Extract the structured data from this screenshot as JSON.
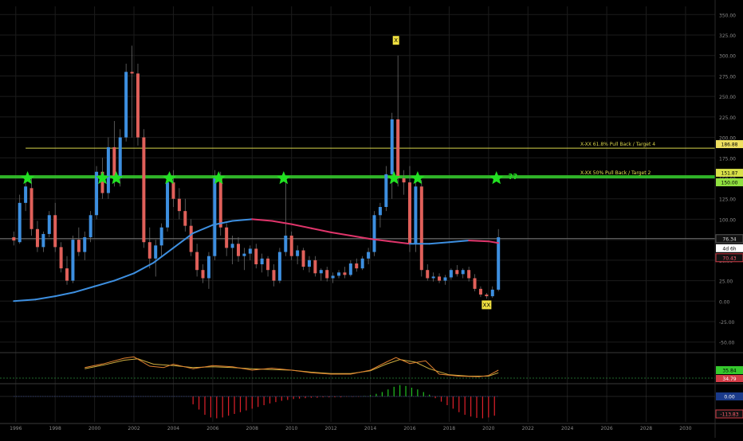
{
  "colors": {
    "background": "#000000",
    "grid": "#1c1c1c",
    "bull_candle": "#3d8fe0",
    "bear_candle": "#e0605a",
    "ma_rising": "#3d8fe0",
    "ma_falling": "#e0356b",
    "star": "#22e022",
    "level_618": "#d8d44a",
    "level_50": "#35c82d",
    "ref_line": "#777777",
    "axis_text": "#8a8a8a",
    "xx_label_bg": "#f0e040",
    "price_tag_bg": "#ffffff",
    "red_tag_bg": "#d13b46",
    "osc_fast": "#e08030",
    "osc_slow": "#d0b040",
    "osc_dash": "#2a8a3a",
    "hist_neg": "#e0202a",
    "hist_pos": "#20c020"
  },
  "chart_data": {
    "type": "candlestick",
    "x_axis_years": [
      "1996",
      "1998",
      "2000",
      "2002",
      "2004",
      "2006",
      "2008",
      "2010",
      "2012",
      "2014",
      "2016",
      "2018",
      "2020",
      "2022",
      "2024",
      "2026",
      "2028",
      "2030"
    ],
    "y_ticks": [
      "350.00",
      "325.00",
      "300.00",
      "275.00",
      "250.00",
      "225.00",
      "200.00",
      "175.00",
      "150.00",
      "125.00",
      "100.00",
      "75.00",
      "50.00",
      "25.00",
      "0.00",
      "-25.00",
      "-50.00"
    ],
    "ylim": [
      -60,
      360
    ],
    "xlim": [
      1995.2,
      2031.5
    ],
    "price_levels": [
      {
        "name": "618",
        "value": 186.88,
        "label": "X-XX 61.8% Pull Back / Target 4",
        "tag": "186.88",
        "start": 1996.5
      },
      {
        "name": "50",
        "value": 151.87,
        "label": "X-XX 50% Pull Back / Target 2",
        "tag": "151.87",
        "start": 1995.2
      },
      {
        "name": "50b",
        "value": 150.0,
        "tag": "150.00"
      }
    ],
    "current_price": {
      "value": 76.34,
      "tag": "76.34",
      "countdown": "4d 6h"
    },
    "red_tag": {
      "value": 70.43,
      "tag": "70.43"
    },
    "candles": [
      {
        "t": 1995.9,
        "o": 78,
        "h": 85,
        "l": 68,
        "c": 74
      },
      {
        "t": 1996.2,
        "o": 72,
        "h": 130,
        "l": 70,
        "c": 120
      },
      {
        "t": 1996.5,
        "o": 120,
        "h": 148,
        "l": 110,
        "c": 140
      },
      {
        "t": 1996.8,
        "o": 138,
        "h": 150,
        "l": 80,
        "c": 88
      },
      {
        "t": 1997.1,
        "o": 88,
        "h": 98,
        "l": 60,
        "c": 66
      },
      {
        "t": 1997.4,
        "o": 66,
        "h": 85,
        "l": 60,
        "c": 82
      },
      {
        "t": 1997.7,
        "o": 82,
        "h": 110,
        "l": 78,
        "c": 105
      },
      {
        "t": 1998.0,
        "o": 105,
        "h": 120,
        "l": 60,
        "c": 66
      },
      {
        "t": 1998.3,
        "o": 66,
        "h": 72,
        "l": 35,
        "c": 40
      },
      {
        "t": 1998.6,
        "o": 40,
        "h": 55,
        "l": 20,
        "c": 25
      },
      {
        "t": 1998.9,
        "o": 25,
        "h": 80,
        "l": 22,
        "c": 75
      },
      {
        "t": 1999.2,
        "o": 75,
        "h": 90,
        "l": 55,
        "c": 60
      },
      {
        "t": 1999.5,
        "o": 60,
        "h": 85,
        "l": 50,
        "c": 78
      },
      {
        "t": 1999.8,
        "o": 78,
        "h": 110,
        "l": 72,
        "c": 105
      },
      {
        "t": 2000.1,
        "o": 105,
        "h": 165,
        "l": 100,
        "c": 158
      },
      {
        "t": 2000.4,
        "o": 158,
        "h": 175,
        "l": 125,
        "c": 132
      },
      {
        "t": 2000.7,
        "o": 132,
        "h": 200,
        "l": 125,
        "c": 188
      },
      {
        "t": 2001.0,
        "o": 188,
        "h": 220,
        "l": 140,
        "c": 150
      },
      {
        "t": 2001.3,
        "o": 150,
        "h": 210,
        "l": 140,
        "c": 200
      },
      {
        "t": 2001.6,
        "o": 200,
        "h": 290,
        "l": 195,
        "c": 280
      },
      {
        "t": 2001.9,
        "o": 280,
        "h": 312,
        "l": 200,
        "c": 278
      },
      {
        "t": 2002.2,
        "o": 278,
        "h": 290,
        "l": 190,
        "c": 200
      },
      {
        "t": 2002.5,
        "o": 200,
        "h": 210,
        "l": 65,
        "c": 72
      },
      {
        "t": 2002.8,
        "o": 72,
        "h": 90,
        "l": 40,
        "c": 52
      },
      {
        "t": 2003.1,
        "o": 52,
        "h": 75,
        "l": 30,
        "c": 68
      },
      {
        "t": 2003.4,
        "o": 68,
        "h": 95,
        "l": 55,
        "c": 90
      },
      {
        "t": 2003.7,
        "o": 90,
        "h": 155,
        "l": 85,
        "c": 145
      },
      {
        "t": 2004.0,
        "o": 145,
        "h": 160,
        "l": 115,
        "c": 125
      },
      {
        "t": 2004.3,
        "o": 125,
        "h": 138,
        "l": 100,
        "c": 110
      },
      {
        "t": 2004.6,
        "o": 110,
        "h": 125,
        "l": 85,
        "c": 92
      },
      {
        "t": 2004.9,
        "o": 92,
        "h": 100,
        "l": 55,
        "c": 60
      },
      {
        "t": 2005.2,
        "o": 60,
        "h": 70,
        "l": 30,
        "c": 38
      },
      {
        "t": 2005.5,
        "o": 38,
        "h": 45,
        "l": 22,
        "c": 28
      },
      {
        "t": 2005.8,
        "o": 28,
        "h": 60,
        "l": 15,
        "c": 55
      },
      {
        "t": 2006.1,
        "o": 55,
        "h": 160,
        "l": 50,
        "c": 150
      },
      {
        "t": 2006.4,
        "o": 150,
        "h": 158,
        "l": 80,
        "c": 90
      },
      {
        "t": 2006.7,
        "o": 90,
        "h": 95,
        "l": 55,
        "c": 65
      },
      {
        "t": 2007.0,
        "o": 65,
        "h": 80,
        "l": 45,
        "c": 70
      },
      {
        "t": 2007.3,
        "o": 70,
        "h": 78,
        "l": 48,
        "c": 55
      },
      {
        "t": 2007.6,
        "o": 55,
        "h": 65,
        "l": 38,
        "c": 58
      },
      {
        "t": 2007.9,
        "o": 58,
        "h": 68,
        "l": 50,
        "c": 64
      },
      {
        "t": 2008.2,
        "o": 64,
        "h": 70,
        "l": 40,
        "c": 45
      },
      {
        "t": 2008.5,
        "o": 45,
        "h": 58,
        "l": 35,
        "c": 52
      },
      {
        "t": 2008.8,
        "o": 52,
        "h": 55,
        "l": 30,
        "c": 38
      },
      {
        "t": 2009.1,
        "o": 38,
        "h": 45,
        "l": 18,
        "c": 25
      },
      {
        "t": 2009.4,
        "o": 25,
        "h": 65,
        "l": 22,
        "c": 60
      },
      {
        "t": 2009.7,
        "o": 60,
        "h": 150,
        "l": 55,
        "c": 80
      },
      {
        "t": 2010.0,
        "o": 80,
        "h": 85,
        "l": 50,
        "c": 55
      },
      {
        "t": 2010.3,
        "o": 55,
        "h": 68,
        "l": 45,
        "c": 62
      },
      {
        "t": 2010.6,
        "o": 62,
        "h": 65,
        "l": 38,
        "c": 42
      },
      {
        "t": 2010.9,
        "o": 42,
        "h": 55,
        "l": 35,
        "c": 50
      },
      {
        "t": 2011.2,
        "o": 50,
        "h": 55,
        "l": 30,
        "c": 34
      },
      {
        "t": 2011.5,
        "o": 34,
        "h": 40,
        "l": 25,
        "c": 38
      },
      {
        "t": 2011.8,
        "o": 38,
        "h": 42,
        "l": 24,
        "c": 28
      },
      {
        "t": 2012.1,
        "o": 28,
        "h": 35,
        "l": 22,
        "c": 31
      },
      {
        "t": 2012.4,
        "o": 31,
        "h": 38,
        "l": 28,
        "c": 35
      },
      {
        "t": 2012.7,
        "o": 35,
        "h": 42,
        "l": 28,
        "c": 32
      },
      {
        "t": 2013.0,
        "o": 32,
        "h": 50,
        "l": 30,
        "c": 46
      },
      {
        "t": 2013.3,
        "o": 46,
        "h": 52,
        "l": 36,
        "c": 40
      },
      {
        "t": 2013.6,
        "o": 40,
        "h": 55,
        "l": 38,
        "c": 52
      },
      {
        "t": 2013.9,
        "o": 52,
        "h": 65,
        "l": 45,
        "c": 60
      },
      {
        "t": 2014.2,
        "o": 60,
        "h": 110,
        "l": 55,
        "c": 105
      },
      {
        "t": 2014.5,
        "o": 105,
        "h": 120,
        "l": 90,
        "c": 115
      },
      {
        "t": 2014.8,
        "o": 115,
        "h": 165,
        "l": 110,
        "c": 155
      },
      {
        "t": 2015.1,
        "o": 155,
        "h": 230,
        "l": 125,
        "c": 222
      },
      {
        "t": 2015.4,
        "o": 222,
        "h": 300,
        "l": 140,
        "c": 150
      },
      {
        "t": 2015.7,
        "o": 150,
        "h": 160,
        "l": 130,
        "c": 145
      },
      {
        "t": 2016.0,
        "o": 145,
        "h": 165,
        "l": 60,
        "c": 70
      },
      {
        "t": 2016.3,
        "o": 70,
        "h": 150,
        "l": 60,
        "c": 140
      },
      {
        "t": 2016.6,
        "o": 140,
        "h": 148,
        "l": 30,
        "c": 38
      },
      {
        "t": 2016.9,
        "o": 38,
        "h": 45,
        "l": 25,
        "c": 28
      },
      {
        "t": 2017.2,
        "o": 28,
        "h": 35,
        "l": 24,
        "c": 30
      },
      {
        "t": 2017.5,
        "o": 30,
        "h": 34,
        "l": 22,
        "c": 25
      },
      {
        "t": 2017.8,
        "o": 25,
        "h": 32,
        "l": 20,
        "c": 29
      },
      {
        "t": 2018.1,
        "o": 29,
        "h": 40,
        "l": 26,
        "c": 38
      },
      {
        "t": 2018.4,
        "o": 38,
        "h": 44,
        "l": 30,
        "c": 33
      },
      {
        "t": 2018.7,
        "o": 33,
        "h": 40,
        "l": 28,
        "c": 38
      },
      {
        "t": 2019.0,
        "o": 38,
        "h": 42,
        "l": 24,
        "c": 28
      },
      {
        "t": 2019.3,
        "o": 28,
        "h": 33,
        "l": 12,
        "c": 15
      },
      {
        "t": 2019.6,
        "o": 15,
        "h": 18,
        "l": 5,
        "c": 8
      },
      {
        "t": 2019.9,
        "o": 8,
        "h": 10,
        "l": 3,
        "c": 6
      },
      {
        "t": 2020.2,
        "o": 6,
        "h": 18,
        "l": 4,
        "c": 14
      },
      {
        "t": 2020.5,
        "o": 14,
        "h": 88,
        "l": 12,
        "c": 78
      }
    ],
    "moving_average": [
      {
        "t": 1995.9,
        "v": 0
      },
      {
        "t": 1997.0,
        "v": 2
      },
      {
        "t": 1998.0,
        "v": 6
      },
      {
        "t": 1999.0,
        "v": 11
      },
      {
        "t": 2000.0,
        "v": 18
      },
      {
        "t": 2001.0,
        "v": 25
      },
      {
        "t": 2002.0,
        "v": 34
      },
      {
        "t": 2003.0,
        "v": 47
      },
      {
        "t": 2004.0,
        "v": 65
      },
      {
        "t": 2005.0,
        "v": 83
      },
      {
        "t": 2006.0,
        "v": 93
      },
      {
        "t": 2007.0,
        "v": 98
      },
      {
        "t": 2008.0,
        "v": 100
      },
      {
        "t": 2009.0,
        "v": 98
      },
      {
        "t": 2010.0,
        "v": 94
      },
      {
        "t": 2011.0,
        "v": 89
      },
      {
        "t": 2012.0,
        "v": 84
      },
      {
        "t": 2013.0,
        "v": 80
      },
      {
        "t": 2014.0,
        "v": 76
      },
      {
        "t": 2015.0,
        "v": 73
      },
      {
        "t": 2016.0,
        "v": 70
      },
      {
        "t": 2017.0,
        "v": 70
      },
      {
        "t": 2018.0,
        "v": 72
      },
      {
        "t": 2019.0,
        "v": 74
      },
      {
        "t": 2020.0,
        "v": 73
      },
      {
        "t": 2020.5,
        "v": 71
      }
    ],
    "stars": [
      {
        "t": 1996.6,
        "v": 150
      },
      {
        "t": 2000.4,
        "v": 150
      },
      {
        "t": 2001.1,
        "v": 150
      },
      {
        "t": 2003.8,
        "v": 150
      },
      {
        "t": 2006.3,
        "v": 150
      },
      {
        "t": 2009.6,
        "v": 150
      },
      {
        "t": 2015.2,
        "v": 150
      },
      {
        "t": 2016.4,
        "v": 150
      },
      {
        "t": 2020.4,
        "v": 150
      }
    ],
    "star_note": {
      "t": 2021.0,
      "v": 152,
      "text": "??"
    },
    "x_marker": {
      "t": 2015.3,
      "v": 318,
      "text": "X"
    },
    "xx_marker": {
      "t": 2019.9,
      "v": -5,
      "text": "XX"
    },
    "oscillator": {
      "tag1": "35.84",
      "tag2": "34.79",
      "fast": [
        {
          "t": 1999.5,
          "v": 22
        },
        {
          "t": 2000.5,
          "v": 28
        },
        {
          "t": 2001.5,
          "v": 36
        },
        {
          "t": 2002.0,
          "v": 38
        },
        {
          "t": 2002.8,
          "v": 24
        },
        {
          "t": 2003.5,
          "v": 22
        },
        {
          "t": 2004.0,
          "v": 27
        },
        {
          "t": 2005.0,
          "v": 20
        },
        {
          "t": 2006.0,
          "v": 25
        },
        {
          "t": 2007.0,
          "v": 23
        },
        {
          "t": 2008.0,
          "v": 18
        },
        {
          "t": 2009.0,
          "v": 21
        },
        {
          "t": 2010.0,
          "v": 18
        },
        {
          "t": 2011.0,
          "v": 14
        },
        {
          "t": 2012.0,
          "v": 12
        },
        {
          "t": 2013.0,
          "v": 12
        },
        {
          "t": 2014.0,
          "v": 18
        },
        {
          "t": 2014.8,
          "v": 30
        },
        {
          "t": 2015.3,
          "v": 37
        },
        {
          "t": 2016.0,
          "v": 28
        },
        {
          "t": 2016.8,
          "v": 32
        },
        {
          "t": 2017.5,
          "v": 12
        },
        {
          "t": 2018.5,
          "v": 9
        },
        {
          "t": 2019.5,
          "v": 8
        },
        {
          "t": 2020.0,
          "v": 10
        },
        {
          "t": 2020.5,
          "v": 18
        }
      ],
      "slow": [
        {
          "t": 1999.5,
          "v": 20
        },
        {
          "t": 2000.5,
          "v": 26
        },
        {
          "t": 2001.5,
          "v": 33
        },
        {
          "t": 2002.2,
          "v": 35
        },
        {
          "t": 2003.0,
          "v": 27
        },
        {
          "t": 2004.0,
          "v": 25
        },
        {
          "t": 2005.0,
          "v": 22
        },
        {
          "t": 2006.0,
          "v": 23
        },
        {
          "t": 2007.0,
          "v": 22
        },
        {
          "t": 2008.0,
          "v": 20
        },
        {
          "t": 2009.0,
          "v": 19
        },
        {
          "t": 2010.0,
          "v": 18
        },
        {
          "t": 2011.0,
          "v": 15
        },
        {
          "t": 2012.0,
          "v": 13
        },
        {
          "t": 2013.0,
          "v": 13
        },
        {
          "t": 2014.0,
          "v": 17
        },
        {
          "t": 2014.8,
          "v": 27
        },
        {
          "t": 2015.5,
          "v": 34
        },
        {
          "t": 2016.3,
          "v": 30
        },
        {
          "t": 2017.0,
          "v": 20
        },
        {
          "t": 2018.0,
          "v": 11
        },
        {
          "t": 2019.0,
          "v": 9
        },
        {
          "t": 2020.0,
          "v": 9
        },
        {
          "t": 2020.5,
          "v": 14
        }
      ]
    },
    "histogram": {
      "tag_zero": "0.00",
      "tag_value": "-113.83",
      "bars": [
        {
          "t": 2005.0,
          "v": -18
        },
        {
          "t": 2005.3,
          "v": -30
        },
        {
          "t": 2005.6,
          "v": -42
        },
        {
          "t": 2005.9,
          "v": -48
        },
        {
          "t": 2006.2,
          "v": -50
        },
        {
          "t": 2006.5,
          "v": -48
        },
        {
          "t": 2006.8,
          "v": -44
        },
        {
          "t": 2007.1,
          "v": -40
        },
        {
          "t": 2007.4,
          "v": -36
        },
        {
          "t": 2007.7,
          "v": -32
        },
        {
          "t": 2008.0,
          "v": -28
        },
        {
          "t": 2008.3,
          "v": -24
        },
        {
          "t": 2008.6,
          "v": -20
        },
        {
          "t": 2008.9,
          "v": -16
        },
        {
          "t": 2009.2,
          "v": -13
        },
        {
          "t": 2009.5,
          "v": -10
        },
        {
          "t": 2009.8,
          "v": -8
        },
        {
          "t": 2010.1,
          "v": -6
        },
        {
          "t": 2010.4,
          "v": -5
        },
        {
          "t": 2010.7,
          "v": -4
        },
        {
          "t": 2011.0,
          "v": -3
        },
        {
          "t": 2011.3,
          "v": -3
        },
        {
          "t": 2011.6,
          "v": -2
        },
        {
          "t": 2011.9,
          "v": -2
        },
        {
          "t": 2012.2,
          "v": -2
        },
        {
          "t": 2012.5,
          "v": -2
        },
        {
          "t": 2012.8,
          "v": -1
        },
        {
          "t": 2013.1,
          "v": -1
        },
        {
          "t": 2013.4,
          "v": -1
        },
        {
          "t": 2013.7,
          "v": 1
        },
        {
          "t": 2014.0,
          "v": 3
        },
        {
          "t": 2014.3,
          "v": 6
        },
        {
          "t": 2014.6,
          "v": 10
        },
        {
          "t": 2014.9,
          "v": 16
        },
        {
          "t": 2015.2,
          "v": 22
        },
        {
          "t": 2015.5,
          "v": 26
        },
        {
          "t": 2015.8,
          "v": 24
        },
        {
          "t": 2016.1,
          "v": 20
        },
        {
          "t": 2016.4,
          "v": 16
        },
        {
          "t": 2016.7,
          "v": 10
        },
        {
          "t": 2017.0,
          "v": 4
        },
        {
          "t": 2017.3,
          "v": -4
        },
        {
          "t": 2017.6,
          "v": -12
        },
        {
          "t": 2017.9,
          "v": -20
        },
        {
          "t": 2018.2,
          "v": -28
        },
        {
          "t": 2018.5,
          "v": -36
        },
        {
          "t": 2018.8,
          "v": -42
        },
        {
          "t": 2019.1,
          "v": -46
        },
        {
          "t": 2019.4,
          "v": -49
        },
        {
          "t": 2019.7,
          "v": -50
        },
        {
          "t": 2020.0,
          "v": -48
        },
        {
          "t": 2020.3,
          "v": -44
        }
      ]
    }
  }
}
